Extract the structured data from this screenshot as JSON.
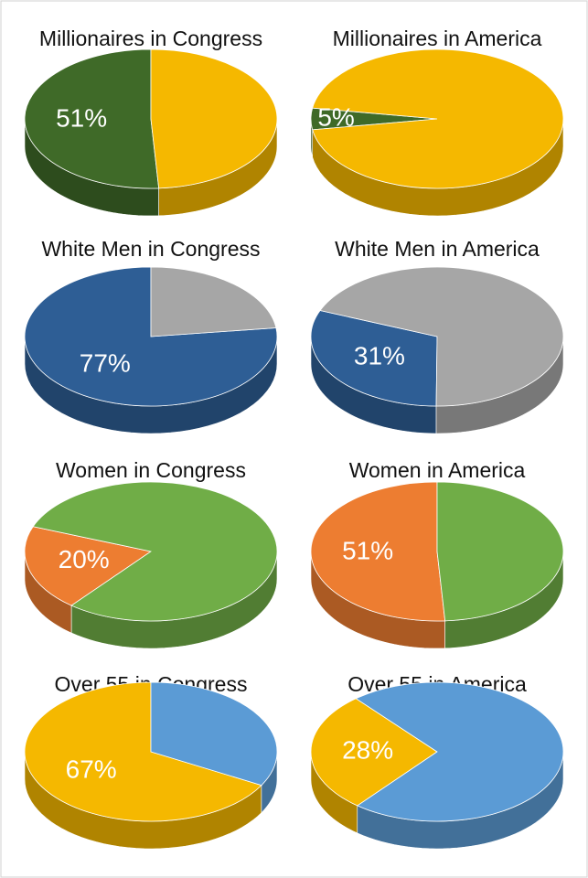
{
  "chart_data": [
    {
      "type": "pie",
      "title": "Millionaires in Congress",
      "values": [
        51,
        49
      ],
      "value_labels": [
        "51%",
        null
      ],
      "colors": [
        "#3f6a28",
        "#f5b800"
      ]
    },
    {
      "type": "pie",
      "title": "Millionaires in America",
      "values": [
        5,
        95
      ],
      "value_labels": [
        "5%",
        null
      ],
      "colors": [
        "#3f6a28",
        "#f5b800"
      ]
    },
    {
      "type": "pie",
      "title": "White Men in Congress",
      "values": [
        77,
        23
      ],
      "value_labels": [
        "77%",
        null
      ],
      "colors": [
        "#2e5e95",
        "#a6a6a6"
      ]
    },
    {
      "type": "pie",
      "title": "White Men in America",
      "values": [
        31,
        69
      ],
      "value_labels": [
        "31%",
        null
      ],
      "colors": [
        "#2e5e95",
        "#a6a6a6"
      ]
    },
    {
      "type": "pie",
      "title": "Women in Congress",
      "values": [
        20,
        80
      ],
      "value_labels": [
        "20%",
        null
      ],
      "colors": [
        "#ed7d31",
        "#70ad47"
      ]
    },
    {
      "type": "pie",
      "title": "Women in America",
      "values": [
        51,
        49
      ],
      "value_labels": [
        "51%",
        null
      ],
      "colors": [
        "#ed7d31",
        "#70ad47"
      ]
    },
    {
      "type": "pie",
      "title": "Over 55 in Congress",
      "values": [
        67,
        33
      ],
      "value_labels": [
        "67%",
        null
      ],
      "colors": [
        "#f5b800",
        "#5b9bd5"
      ]
    },
    {
      "type": "pie",
      "title": "Over 55 in America",
      "values": [
        28,
        72
      ],
      "value_labels": [
        "28%",
        null
      ],
      "colors": [
        "#f5b800",
        "#5b9bd5"
      ]
    }
  ]
}
